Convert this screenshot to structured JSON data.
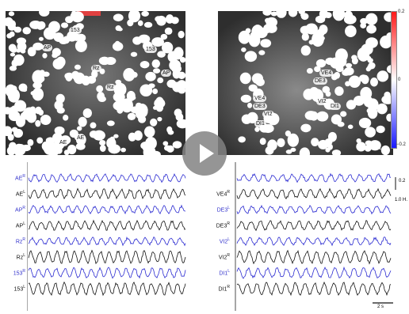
{
  "colors": {
    "blue_trace": "#2b2bd1",
    "black_trace": "#111111",
    "micro_bg": "#3c3c3c"
  },
  "left_panel": {
    "orientation": "R",
    "cell_labels": [
      "153",
      "AP",
      "153",
      "Rz",
      "Rz",
      "AP",
      "AE",
      "AE"
    ]
  },
  "right_panel": {
    "orientation": "R",
    "cell_labels": [
      "VE4",
      "DE3",
      "VE4",
      "DE3",
      "VI2",
      "DI1",
      "VI2",
      "DI1"
    ]
  },
  "colorbar": {
    "top": "0.2",
    "mid": "0",
    "bottom": "−0.2"
  },
  "left_traces": [
    {
      "label": "AE",
      "sup": "R",
      "color": "blue"
    },
    {
      "label": "AE",
      "sup": "L",
      "color": "black"
    },
    {
      "label": "AP",
      "sup": "R",
      "color": "blue"
    },
    {
      "label": "AP",
      "sup": "L",
      "color": "black"
    },
    {
      "label": "Rz",
      "sup": "R",
      "color": "blue"
    },
    {
      "label": "Rz",
      "sup": "L",
      "color": "black"
    },
    {
      "label": "153",
      "sup": "R",
      "color": "blue"
    },
    {
      "label": "153",
      "sup": "L",
      "color": "black"
    }
  ],
  "right_traces": [
    {
      "label": "",
      "sup": "",
      "color": "blue"
    },
    {
      "label": "VE4",
      "sup": "R",
      "color": "black"
    },
    {
      "label": "DE3",
      "sup": "L",
      "color": "blue"
    },
    {
      "label": "DE3",
      "sup": "R",
      "color": "black"
    },
    {
      "label": "VI2",
      "sup": "L",
      "color": "blue"
    },
    {
      "label": "VI2",
      "sup": "R",
      "color": "black"
    },
    {
      "label": "DI1",
      "sup": "L",
      "color": "blue"
    },
    {
      "label": "DI1",
      "sup": "R",
      "color": "black"
    }
  ],
  "scale": {
    "amp": "0.2",
    "freq": "1.0 H.",
    "time": "2 s"
  },
  "play_button": {
    "icon": "play-icon"
  }
}
